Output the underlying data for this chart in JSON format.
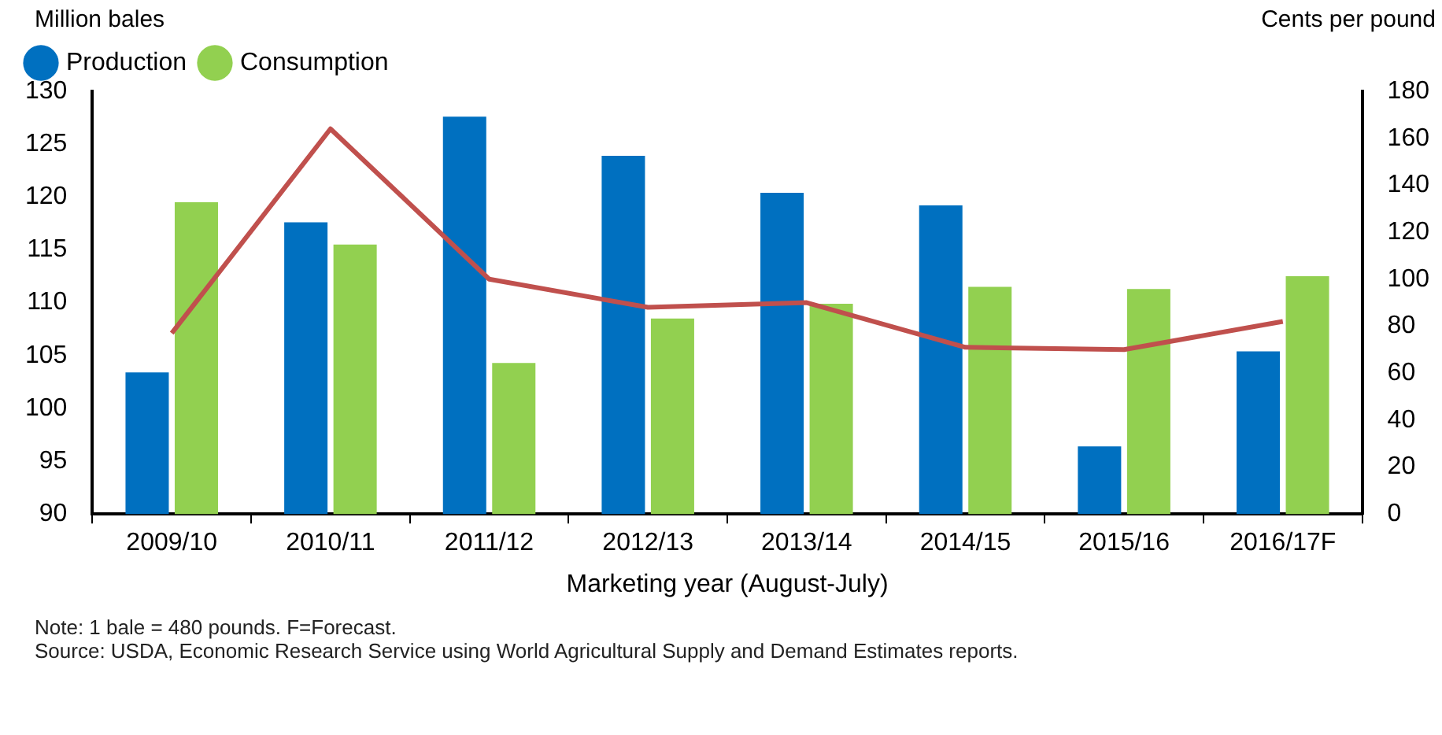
{
  "chart_data": {
    "type": "bar",
    "ylabel": "Million bales",
    "y2label": "Cents per pound",
    "xlabel": "Marketing year (August-July)",
    "categories": [
      "2009/10",
      "2010/11",
      "2011/12",
      "2012/13",
      "2013/14",
      "2014/15",
      "2015/16",
      "2016/17F"
    ],
    "series": [
      {
        "name": "Production",
        "color": "#0070c0",
        "values": [
          103.4,
          117.6,
          127.6,
          123.9,
          120.4,
          119.2,
          96.4,
          105.4
        ]
      },
      {
        "name": "Consumption",
        "color": "#92d050",
        "values": [
          119.5,
          115.5,
          104.3,
          108.5,
          109.9,
          111.5,
          111.3,
          112.5
        ]
      },
      {
        "type": "line",
        "axis": "y2",
        "color": "#c0504d",
        "values": [
          77,
          164,
          100,
          88,
          90,
          71,
          70,
          82
        ]
      }
    ],
    "ylim": [
      90,
      130
    ],
    "yticks": [
      90,
      95,
      100,
      105,
      110,
      115,
      120,
      125,
      130
    ],
    "y2lim": [
      0,
      180
    ],
    "y2ticks": [
      0,
      20,
      40,
      60,
      80,
      100,
      120,
      140,
      160,
      180
    ],
    "legend": "top left",
    "grid": false,
    "marker": "none",
    "line_style": "solid",
    "annotations": [
      "Note: 1 bale = 480 pounds. F=Forecast.",
      "Source: USDA, Economic Research Service using World Agricultural Supply and Demand Estimates reports."
    ]
  }
}
